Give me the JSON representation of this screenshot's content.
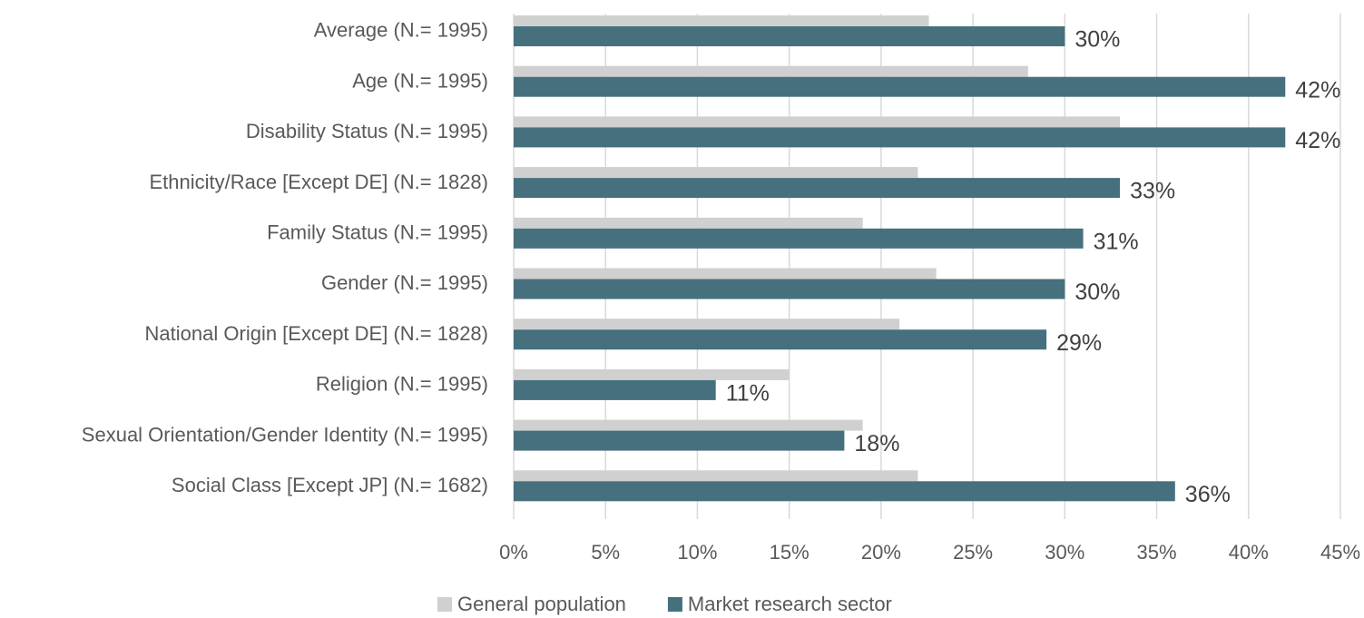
{
  "chart_data": {
    "type": "bar",
    "orientation": "horizontal",
    "categories": [
      "Average (N.= 1995)",
      "Age (N.= 1995)",
      "Disability Status (N.= 1995)",
      "Ethnicity/Race [Except DE] (N.= 1828)",
      "Family Status (N.= 1995)",
      "Gender (N.= 1995)",
      "National Origin [Except DE] (N.= 1828)",
      "Religion (N.= 1995)",
      "Sexual Orientation/Gender Identity (N.= 1995)",
      "Social Class [Except JP] (N.= 1682)"
    ],
    "series": [
      {
        "name": "General population",
        "color": "#d0d0d0",
        "values": [
          22.6,
          28,
          33,
          22,
          19,
          23,
          21,
          15,
          19,
          22
        ]
      },
      {
        "name": "Market research sector",
        "color": "#46707e",
        "values": [
          30,
          42,
          42,
          33,
          31,
          30,
          29,
          11,
          18,
          36
        ],
        "value_labels": [
          "30%",
          "42%",
          "42%",
          "33%",
          "31%",
          "30%",
          "29%",
          "11%",
          "18%",
          "36%"
        ]
      }
    ],
    "xlim": [
      0,
      45
    ],
    "xticks": [
      {
        "value": 0,
        "label": "0%"
      },
      {
        "value": 5,
        "label": "5%"
      },
      {
        "value": 10,
        "label": "10%"
      },
      {
        "value": 15,
        "label": "15%"
      },
      {
        "value": 20,
        "label": "20%"
      },
      {
        "value": 25,
        "label": "25%"
      },
      {
        "value": 30,
        "label": "30%"
      },
      {
        "value": 35,
        "label": "35%"
      },
      {
        "value": 40,
        "label": "40%"
      },
      {
        "value": 45,
        "label": "45%"
      }
    ],
    "grid": true,
    "legend": "bottom"
  }
}
